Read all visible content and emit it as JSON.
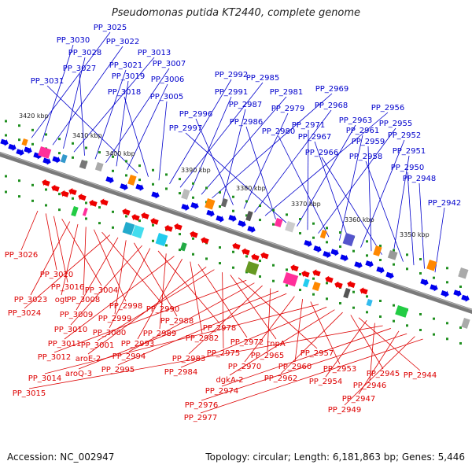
{
  "title": "Pseudomonas putida KT2440, complete genome",
  "footer": {
    "accession": "Accession: NC_002947",
    "topology": "Topology: circular; Length: 6,181,863 bp; Genes: 5,446"
  },
  "colors": {
    "forward_label": "#0000cc",
    "reverse_label": "#dd0000",
    "forward_gene": "#0000ee",
    "reverse_gene": "#ee0000",
    "backbone": "#7a7a7a",
    "tick": "#1f8f1f"
  },
  "scale_labels": [
    "3420 kbp",
    "3410 kbp",
    "3400 kbp",
    "3390 kbp",
    "3380 kbp",
    "3370 kbp",
    "3360 kbp",
    "3350 kbp"
  ],
  "forward_genes": [
    "PP_3025",
    "PP_3030",
    "PP_3022",
    "PP_3028",
    "PP_3013",
    "PP_3027",
    "PP_3021",
    "PP_3007",
    "PP_3019",
    "PP_3006",
    "PP_3031",
    "PP_3018",
    "PP_3005",
    "PP_2992",
    "PP_2985",
    "PP_2991",
    "PP_2981",
    "PP_2969",
    "PP_2987",
    "PP_2996",
    "PP_2979",
    "PP_2968",
    "PP_2956",
    "PP_2986",
    "PP_2997",
    "PP_2963",
    "PP_2971",
    "PP_2955",
    "PP_2980",
    "PP_2961",
    "PP_2967",
    "PP_2952",
    "PP_2959",
    "PP_2966",
    "PP_2951",
    "PP_2958",
    "PP_2950",
    "PP_2948",
    "PP_2942"
  ],
  "reverse_genes": [
    "PP_3026",
    "PP_3020",
    "PP_3016",
    "PP_3004",
    "PP_3023",
    "ogt",
    "PP_3008",
    "PP_2998",
    "PP_2990",
    "PP_3024",
    "PP_3009",
    "PP_2999",
    "PP_2988",
    "PP_3010",
    "PP_3000",
    "PP_2978",
    "PP_2989",
    "PP_3011",
    "PP_2993",
    "PP_2982",
    "PP_2972",
    "aroE-2",
    "PP_3001",
    "PP_2975",
    "tnpA",
    "PP_2957",
    "PP_3012",
    "PP_2994",
    "PP_2983",
    "PP_2965",
    "aroQ-3",
    "PP_2995",
    "PP_2970",
    "PP_2960",
    "PP_2953",
    "PP_3014",
    "PP_2984",
    "dgkA-2",
    "PP_2962",
    "PP_2945",
    "PP_2944",
    "PP_2954",
    "PP_2946",
    "PP_3015",
    "PP_2974",
    "PP_2947",
    "PP_2976",
    "PP_2949",
    "PP_2977"
  ]
}
